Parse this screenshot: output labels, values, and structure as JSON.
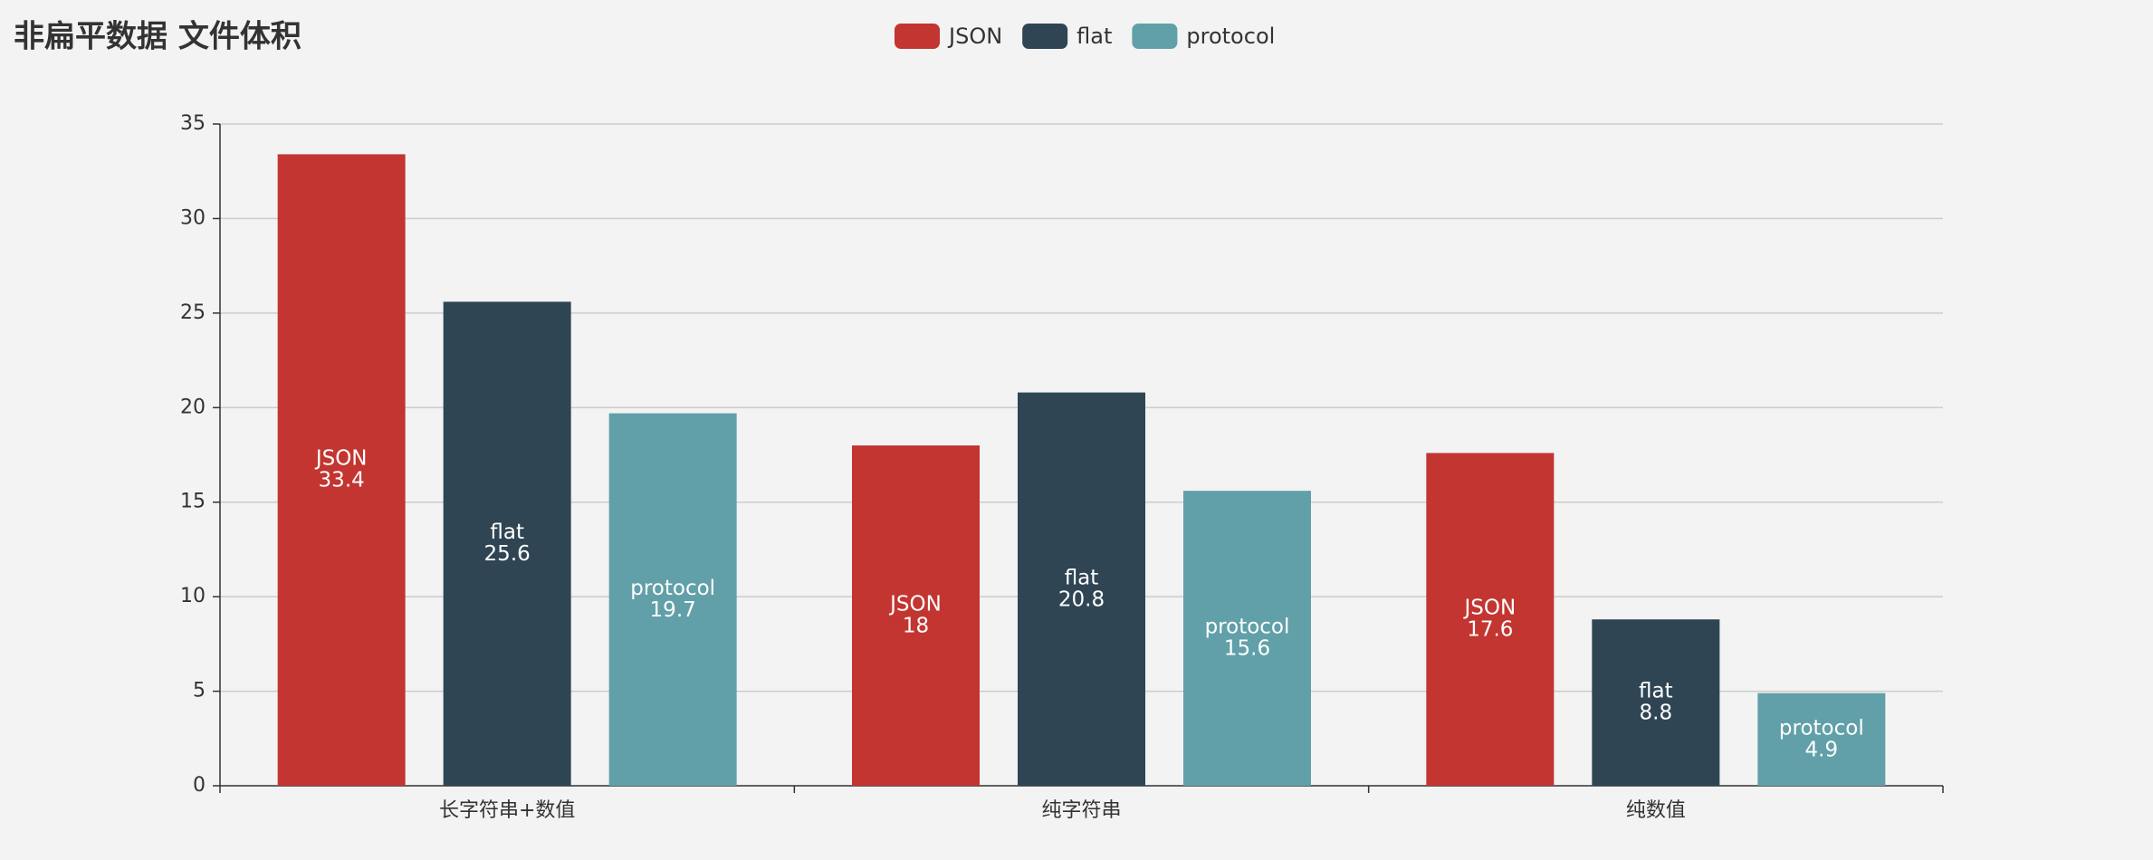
{
  "chart_data": {
    "type": "bar",
    "title": "非扁平数据 文件体积",
    "categories": [
      "长字符串+数值",
      "纯字符串",
      "纯数值"
    ],
    "series": [
      {
        "name": "JSON",
        "color": "#c23531",
        "values": [
          33.4,
          18,
          17.6
        ]
      },
      {
        "name": "flat",
        "color": "#2f4554",
        "values": [
          25.6,
          20.8,
          8.8
        ]
      },
      {
        "name": "protocol",
        "color": "#61a0a8",
        "values": [
          19.7,
          15.6,
          4.9
        ]
      }
    ],
    "ylim": [
      0,
      35
    ],
    "yticks": [
      0,
      5,
      10,
      15,
      20,
      25,
      30,
      35
    ],
    "grid": true
  }
}
